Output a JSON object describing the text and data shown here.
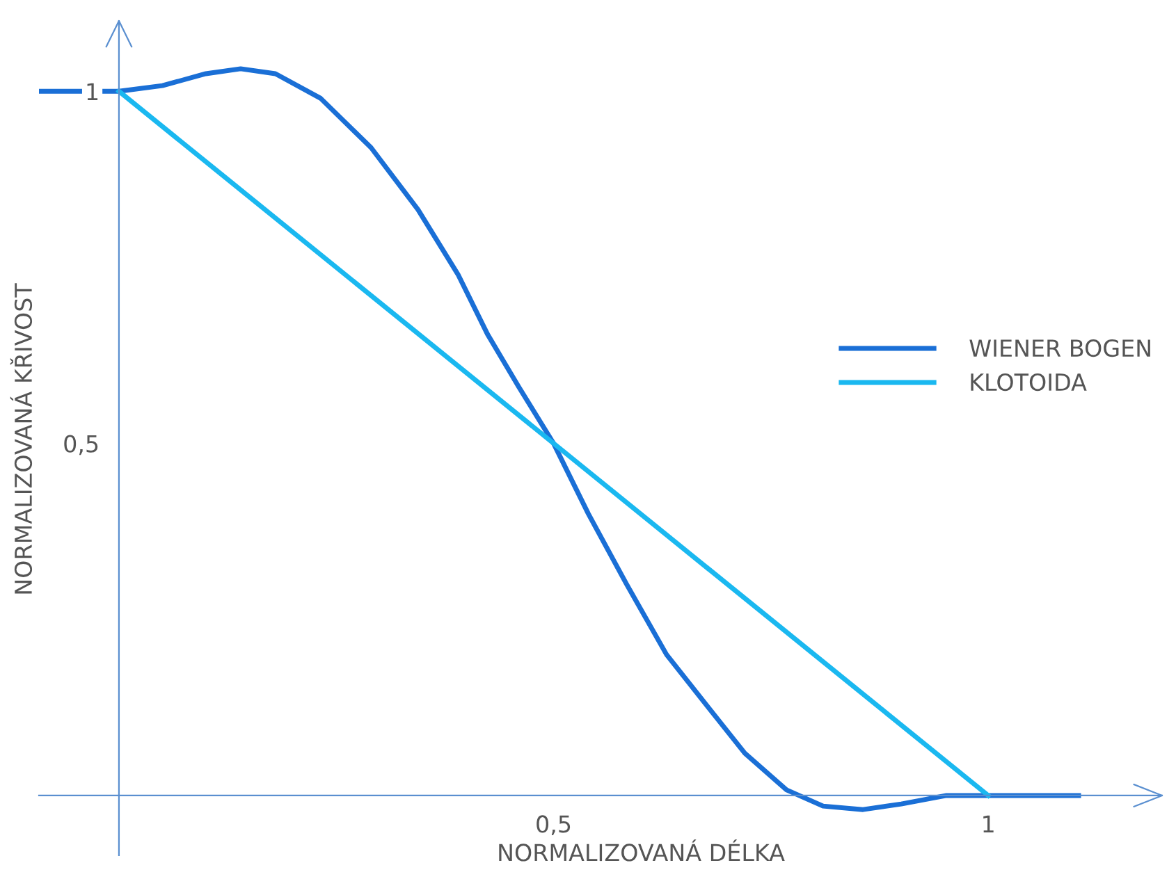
{
  "chart_data": {
    "type": "line",
    "xlabel": "NORMALIZOVANÁ DÉLKA",
    "ylabel": "NORMALIZOVANÁ KŘIVOST",
    "xlim": [
      -0.092,
      1.2
    ],
    "ylim": [
      -0.085,
      1.1
    ],
    "xticks": [
      {
        "value": 0.5,
        "label": "0,5"
      },
      1
    ],
    "yticks": [
      {
        "value": 0.5,
        "label": "0,5"
      },
      1
    ],
    "grid": false,
    "legend": "right",
    "marker": "none",
    "line_style": "solid",
    "series": [
      {
        "name": "WIENER BOGEN",
        "color": "#1a6fd6",
        "x": [
          -0.092,
          0,
          0.05,
          0.1,
          0.14,
          0.18,
          0.232,
          0.29,
          0.344,
          0.39,
          0.424,
          0.46,
          0.5,
          0.54,
          0.584,
          0.63,
          0.68,
          0.72,
          0.768,
          0.81,
          0.856,
          0.9,
          0.952,
          1,
          1.104
        ],
        "values": [
          1,
          1,
          1.008,
          1.025,
          1.032,
          1.025,
          0.99,
          0.92,
          0.832,
          0.74,
          0.655,
          0.58,
          0.5,
          0.4,
          0.3,
          0.2,
          0.122,
          0.06,
          0.008,
          -0.015,
          -0.02,
          -0.012,
          0,
          0,
          0
        ]
      },
      {
        "name": "KLOTOIDA",
        "color": "#1ab8f0",
        "x": [
          0,
          1
        ],
        "values": [
          1,
          0
        ]
      }
    ]
  }
}
